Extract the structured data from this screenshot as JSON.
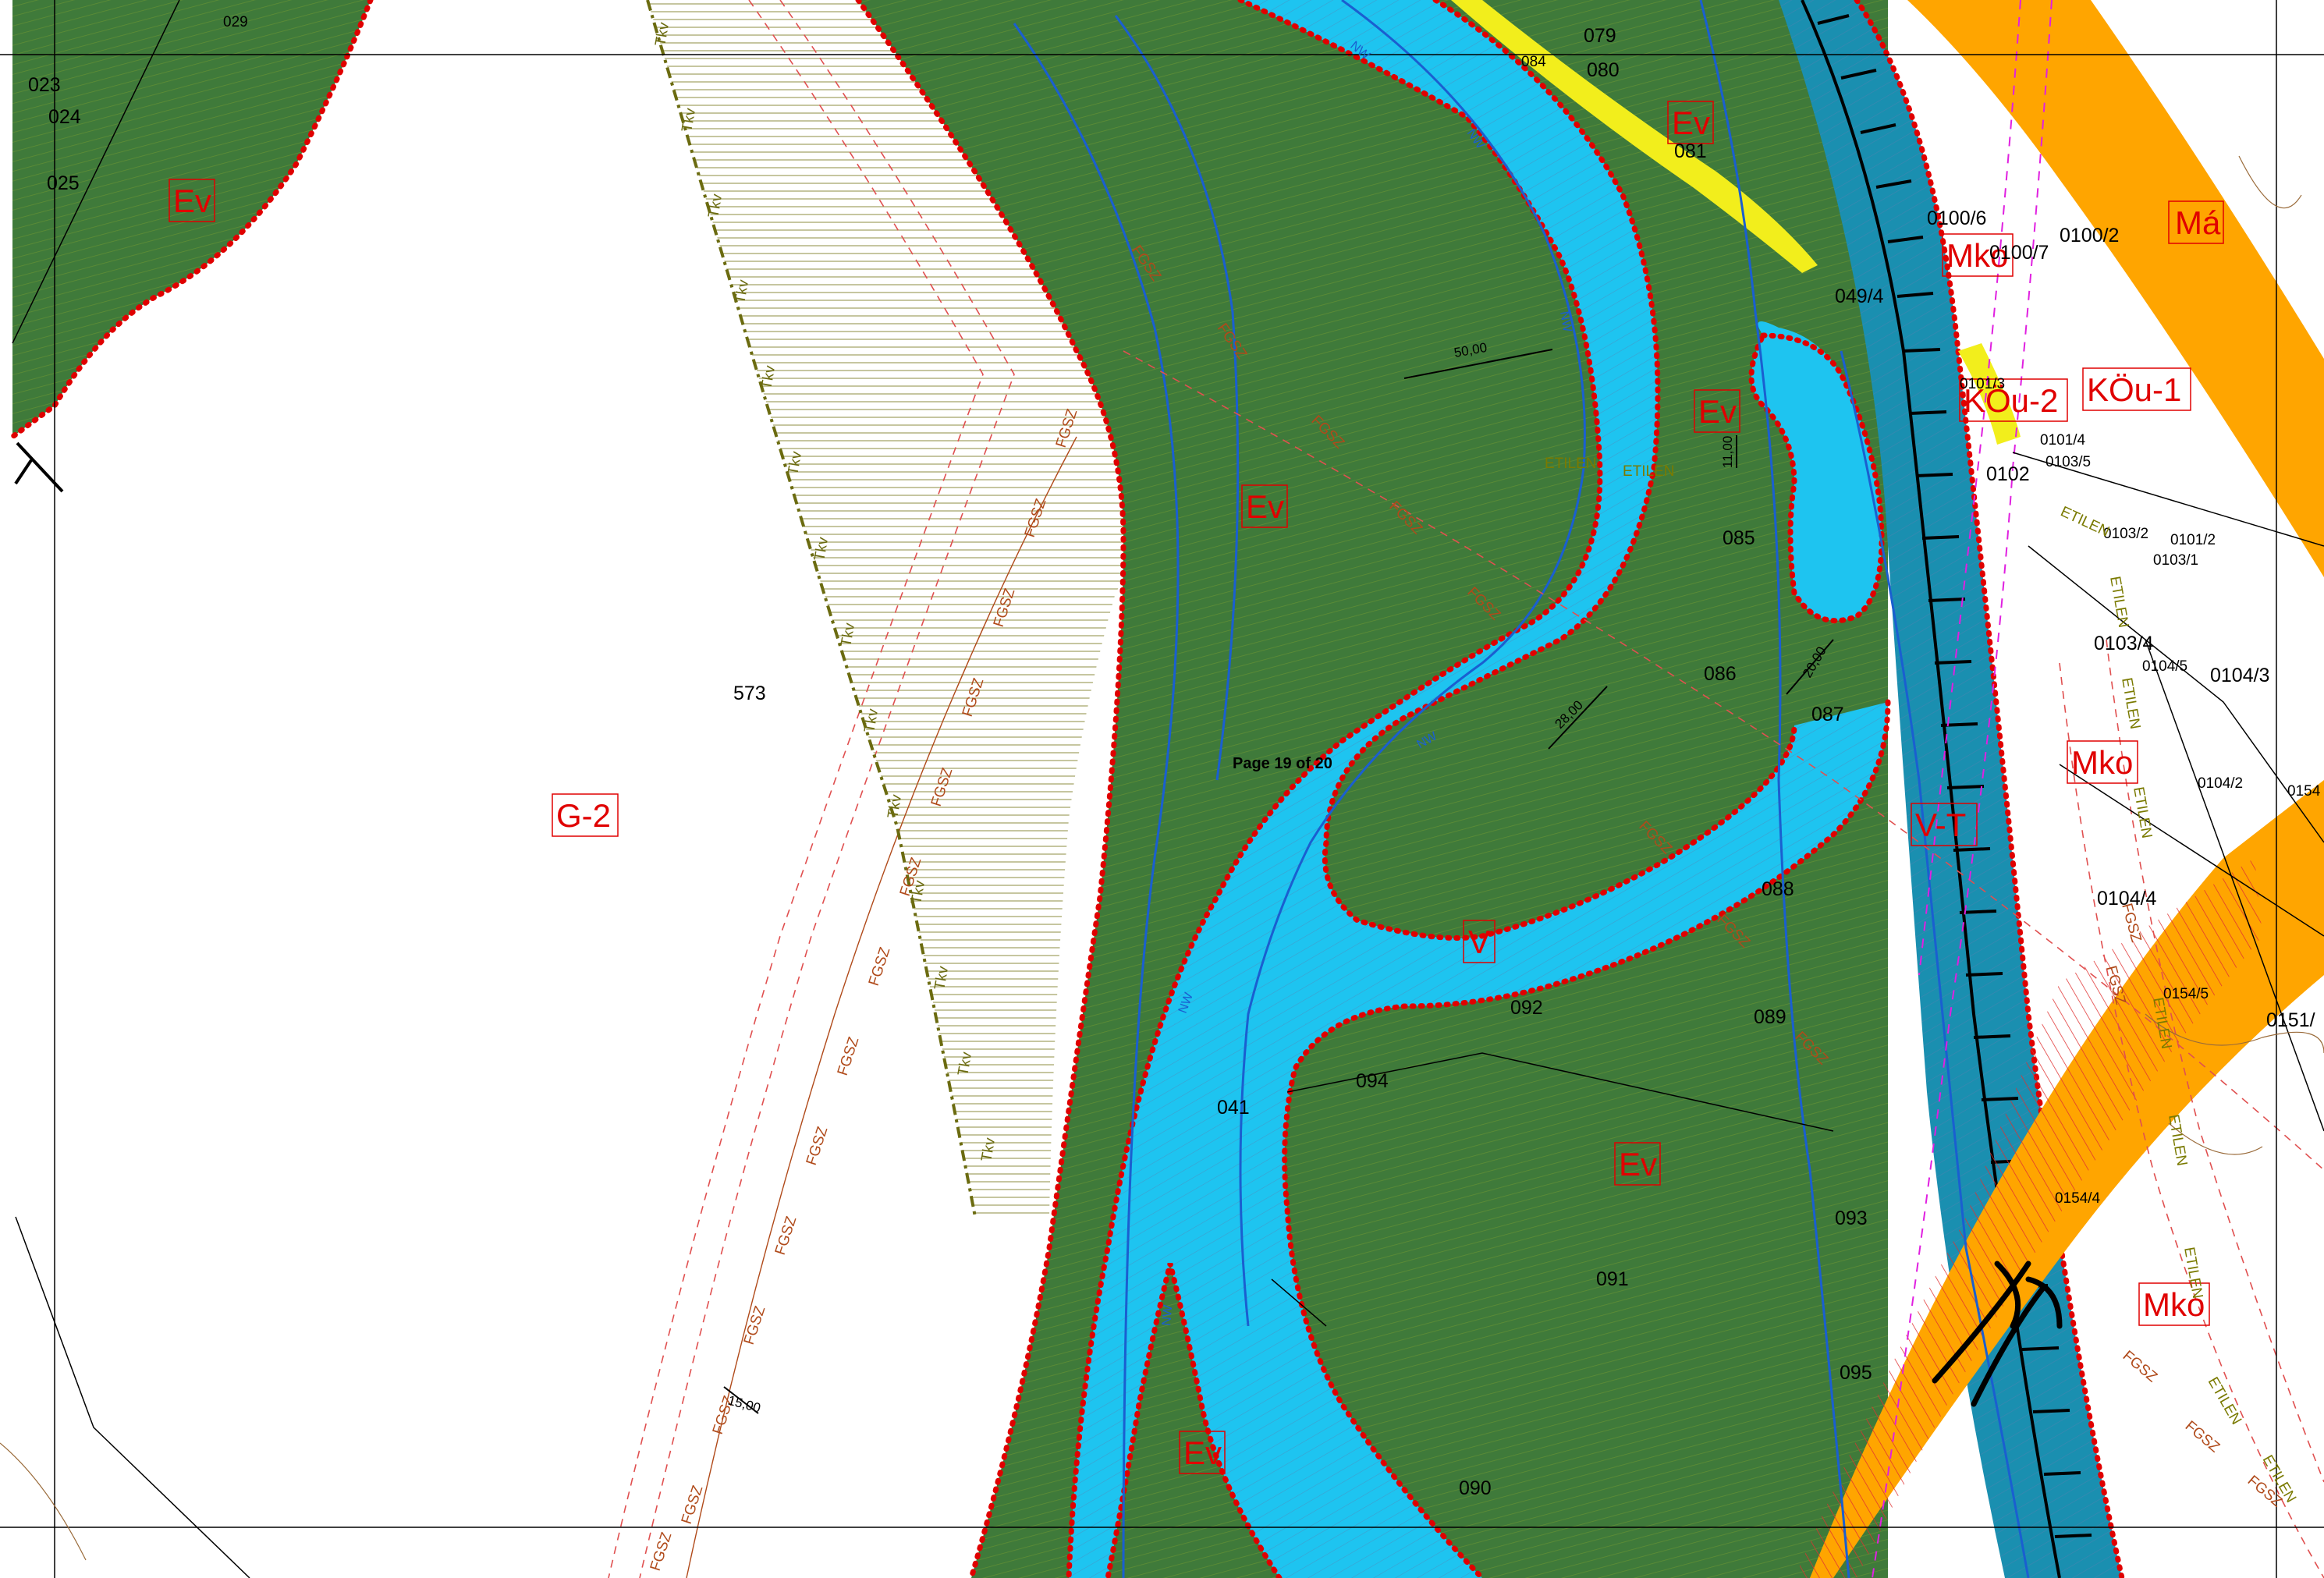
{
  "page_stamp": "Page 19 of 20",
  "colors": {
    "forest": "#3f7a3a",
    "river": "#1ec4f0",
    "river_dark": "#148aa8",
    "road": "#ffa500",
    "path_yellow": "#f2ee1c",
    "zone_border": "#e00000",
    "background": "#ffffff"
  },
  "zone_labels": {
    "ev1": "Ev",
    "ev2": "Ev",
    "ev3": "Ev",
    "ev4": "Ev",
    "ev5": "Ev",
    "ev6": "Ev",
    "g2": "G-2",
    "v": "V",
    "vt": "V-T",
    "mko1": "Mko",
    "mko2": "Mko",
    "mko3": "Mko",
    "ma": "Má",
    "kou1": "KÖu-1",
    "kou2": "KÖu-2"
  },
  "parcels": {
    "p023": "023",
    "p024": "024",
    "p025": "025",
    "p029": "029",
    "p079": "079",
    "p080": "080",
    "p081": "081",
    "p084": "084",
    "p0100_6": "0100/6",
    "p0100_7": "0100/7",
    "p0100_2": "0100/2",
    "p049_4": "049/4",
    "p0101_3": "0101/3",
    "p0101_4": "0101/4",
    "p0103_5": "0103/5",
    "p0102": "0102",
    "p0103_2": "0103/2",
    "p0101_2": "0101/2",
    "p0103_1": "0103/1",
    "p0103_4": "0103/4",
    "p0104_5": "0104/5",
    "p0104_3": "0104/3",
    "p0104_2": "0104/2",
    "p0154": "0154",
    "p0104_4": "0104/4",
    "p0154_5": "0154/5",
    "p0151": "0151/",
    "p0154_4": "0154/4",
    "p573": "573",
    "p085": "085",
    "p086": "086",
    "p087": "087",
    "p088": "088",
    "p089": "089",
    "p092": "092",
    "p094": "094",
    "p041": "041",
    "p093": "093",
    "p091": "091",
    "p095": "095",
    "p090": "090"
  },
  "utilities": {
    "fgsz": "FGSZ",
    "etilen": "ETILEN",
    "tkv": "Tkv",
    "vw": "NW"
  },
  "dimensions": {
    "d50": "50,00",
    "d11": "11,00",
    "d28": "28,00",
    "d20": "20,00",
    "d15": "15,00"
  }
}
